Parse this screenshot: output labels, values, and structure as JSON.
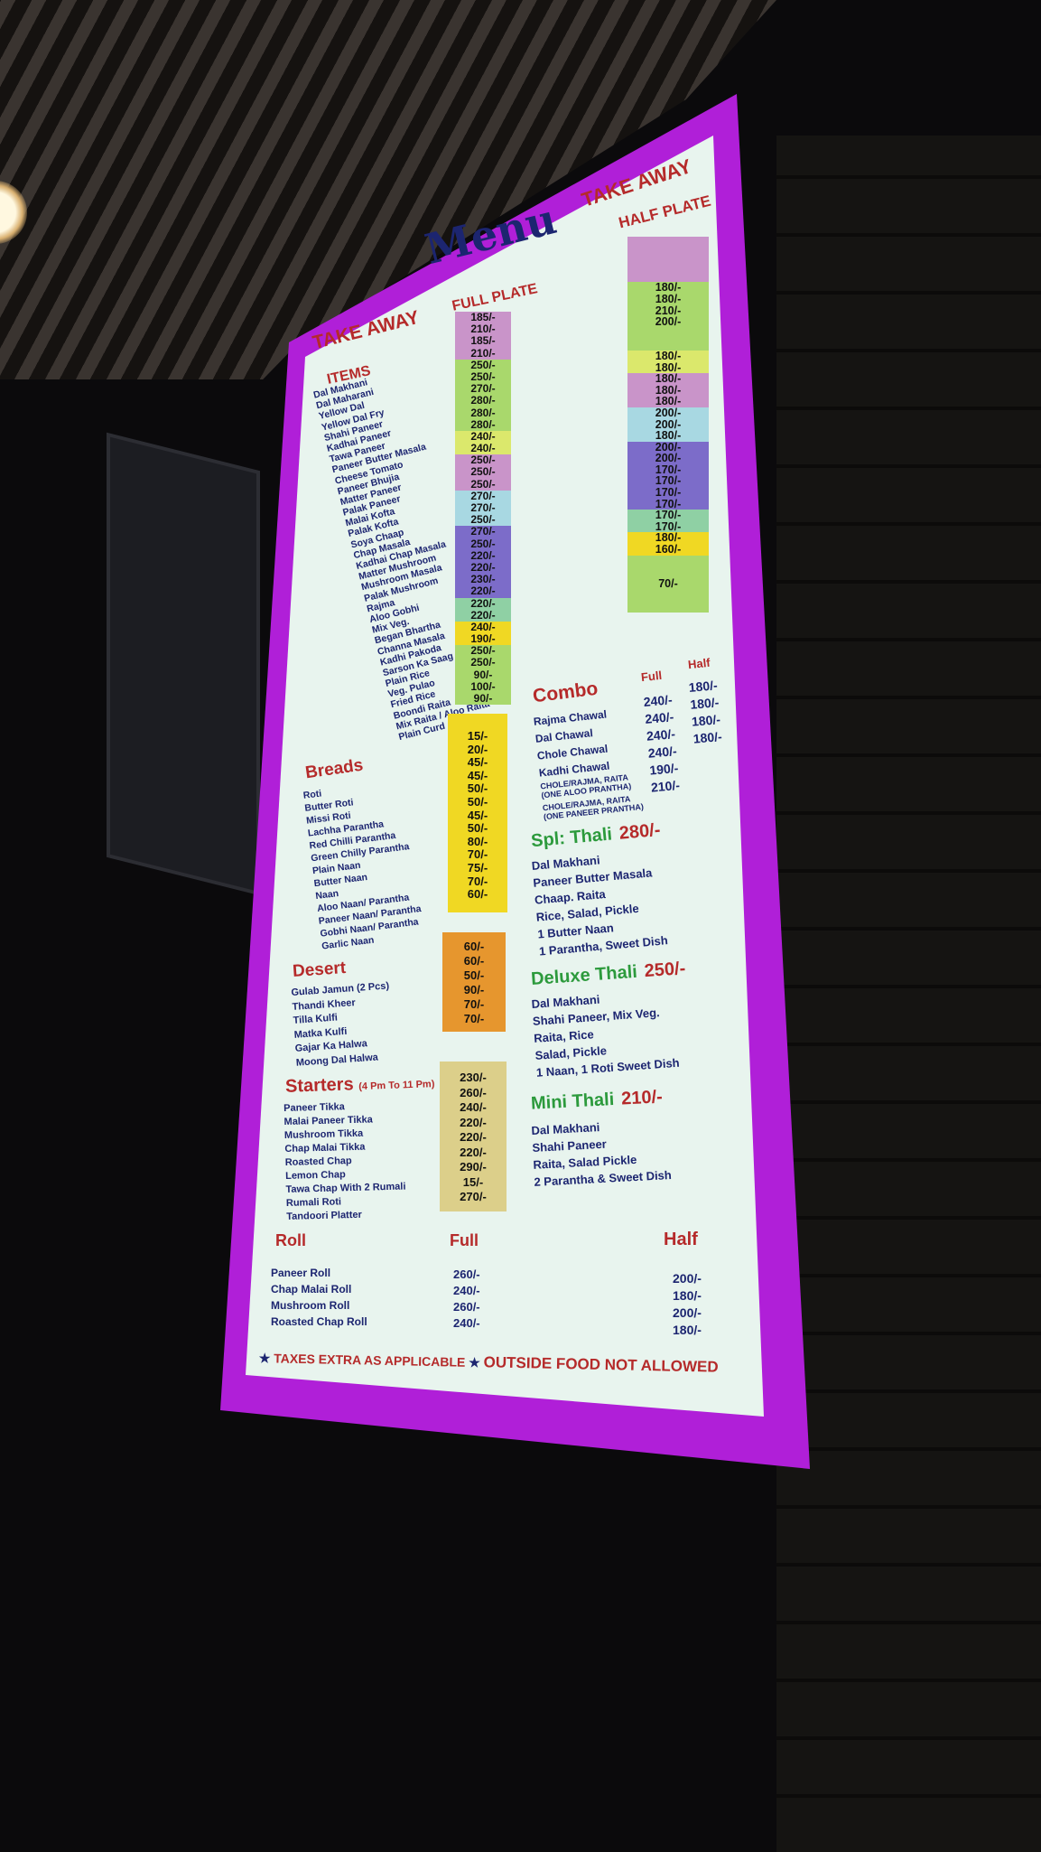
{
  "header": {
    "title": "Menu",
    "take_away_left": "TAKE AWAY",
    "full_plate": "FULL PLATE",
    "take_away_right": "TAKE AWAY",
    "half_plate": "HALF PLATE",
    "items_heading": "ITEMS"
  },
  "items": [
    "Dal Makhani",
    "Dal Maharani",
    "Yellow Dal",
    "Yellow Dal Fry",
    "Shahi Paneer",
    "Kadhai Paneer",
    "Tawa Paneer",
    "Paneer Butter Masala",
    "Cheese Tomato",
    "Paneer Bhujia",
    "Matter Paneer",
    "Palak Paneer",
    "Malai Kofta",
    "Palak Kofta",
    "Soya Chaap",
    "Chap Masala",
    "Kadhai Chap Masala",
    "Matter Mushroom",
    "Mushroom Masala",
    "Palak Mushroom",
    "Rajma",
    "Aloo Gobhi",
    "Mix Veg.",
    "Began Bhartha",
    "Channa Masala",
    "Kadhi Pakoda",
    "Sarson Ka Saag (Seasonal)",
    "Plain Rice",
    "Veg. Pulao",
    "Fried Rice",
    "Boondi Raita",
    "Mix Raita / Aloo Raita",
    "Plain Curd"
  ],
  "full_segments": [
    {
      "color": "#c994c9",
      "prices": [
        "185/-",
        "210/-",
        "185/-",
        "210/-"
      ]
    },
    {
      "color": "#a9d86c",
      "prices": [
        "250/-",
        "250/-",
        "270/-",
        "280/-",
        "280/-",
        "280/-"
      ]
    },
    {
      "color": "#dbe86c",
      "prices": [
        "240/-",
        "240/-"
      ]
    },
    {
      "color": "#c994c9",
      "prices": [
        "250/-",
        "250/-",
        "250/-"
      ]
    },
    {
      "color": "#a8d8e2",
      "prices": [
        "270/-",
        "270/-",
        "250/-"
      ]
    },
    {
      "color": "#7c6cc9",
      "prices": [
        "270/-",
        "250/-",
        "220/-",
        "220/-",
        "230/-",
        "220/-"
      ]
    },
    {
      "color": "#8fd0a4",
      "prices": [
        "220/-",
        "220/-"
      ]
    },
    {
      "color": "#f0d823",
      "prices": [
        "240/-",
        "190/-"
      ]
    },
    {
      "color": "#a9d86c",
      "prices": [
        "250/-",
        "250/-",
        "90/-",
        "100/-",
        "90/-"
      ]
    }
  ],
  "half_segments": [
    {
      "color": "#c994c9",
      "prices": [
        "",
        "",
        "",
        ""
      ]
    },
    {
      "color": "#a9d86c",
      "prices": [
        "180/-",
        "180/-",
        "210/-",
        "200/-",
        "",
        ""
      ]
    },
    {
      "color": "#dbe86c",
      "prices": [
        "180/-",
        "180/-"
      ]
    },
    {
      "color": "#c994c9",
      "prices": [
        "180/-",
        "180/-",
        "180/-"
      ]
    },
    {
      "color": "#a8d8e2",
      "prices": [
        "200/-",
        "200/-",
        "180/-"
      ]
    },
    {
      "color": "#7c6cc9",
      "prices": [
        "200/-",
        "200/-",
        "170/-",
        "170/-",
        "170/-",
        "170/-"
      ]
    },
    {
      "color": "#8fd0a4",
      "prices": [
        "170/-",
        "170/-"
      ]
    },
    {
      "color": "#f0d823",
      "prices": [
        "180/-",
        "160/-"
      ]
    },
    {
      "color": "#a9d86c",
      "prices": [
        "",
        "",
        "70/-",
        "",
        ""
      ]
    }
  ],
  "breads": {
    "heading": "Breads",
    "color": "#f0d823",
    "items": [
      "Roti",
      "Butter Roti",
      "Missi Roti",
      "Lachha Parantha",
      "Red Chilli Parantha",
      "Green Chilly Parantha",
      "Plain Naan",
      "Butter Naan",
      "Naan",
      "Aloo Naan/ Parantha",
      "Paneer Naan/ Parantha",
      "Gobhi Naan/ Parantha",
      "Garlic Naan"
    ],
    "prices": [
      "15/-",
      "20/-",
      "45/-",
      "45/-",
      "50/-",
      "50/-",
      "45/-",
      "50/-",
      "80/-",
      "70/-",
      "75/-",
      "70/-",
      "60/-"
    ]
  },
  "desert": {
    "heading": "Desert",
    "color": "#e6962e",
    "items": [
      "Gulab Jamun (2 Pcs)",
      "Thandi Kheer",
      "Tilla Kulfi",
      "Matka Kulfi",
      "Gajar Ka Halwa",
      "Moong Dal Halwa"
    ],
    "prices": [
      "60/-",
      "60/-",
      "50/-",
      "90/-",
      "70/-",
      "70/-"
    ]
  },
  "starters": {
    "heading": "Starters",
    "note": "(4 Pm To 11 Pm)",
    "color": "#dccf8a",
    "items": [
      "Paneer Tikka",
      "Malai Paneer Tikka",
      "Mushroom Tikka",
      "Chap Malai Tikka",
      "Roasted Chap",
      "Lemon Chap",
      "Tawa Chap With 2 Rumali",
      "Rumali Roti",
      "Tandoori Platter"
    ],
    "prices": [
      "230/-",
      "260/-",
      "240/-",
      "220/-",
      "220/-",
      "220/-",
      "290/-",
      "15/-",
      "270/-"
    ]
  },
  "combo": {
    "heading": "Combo",
    "full_label": "Full",
    "half_label": "Half",
    "items": [
      "Rajma Chawal",
      "Dal Chawal",
      "Chole Chawal",
      "Kadhi Chawal",
      "CHOLE/RAJMA, RAITA (ONE ALOO PRANTHA)",
      "CHOLE/RAJMA, RAITA (ONE PANEER PRANTHA)"
    ],
    "full": [
      "240/-",
      "240/-",
      "240/-",
      "240/-",
      "190/-",
      "210/-"
    ],
    "half": [
      "180/-",
      "180/-",
      "180/-",
      "180/-"
    ]
  },
  "thalis": [
    {
      "name": "Spl: Thali",
      "price": "280/-",
      "items": [
        "Dal Makhani",
        "Paneer Butter Masala",
        "Chaap. Raita",
        "Rice, Salad, Pickle",
        "1 Butter Naan",
        "1 Parantha, Sweet Dish"
      ]
    },
    {
      "name": "Deluxe Thali",
      "price": "250/-",
      "items": [
        "Dal Makhani",
        "Shahi Paneer, Mix Veg.",
        "Raita, Rice",
        "Salad, Pickle",
        "1 Naan, 1 Roti Sweet Dish"
      ]
    },
    {
      "name": "Mini Thali",
      "price": "210/-",
      "items": [
        "Dal Makhani",
        "Shahi Paneer",
        "Raita, Salad Pickle",
        "2 Parantha & Sweet Dish"
      ]
    }
  ],
  "roll": {
    "heading": "Roll",
    "full_label": "Full",
    "half_label": "Half",
    "items": [
      "Paneer Roll",
      "Chap Malai Roll",
      "Mushroom Roll",
      "Roasted Chap Roll"
    ],
    "full": [
      "260/-",
      "240/-",
      "260/-",
      "240/-"
    ],
    "half": [
      "200/-",
      "180/-",
      "200/-",
      "180/-"
    ]
  },
  "footer": {
    "taxes": "TAXES EXTRA AS APPLICABLE",
    "outside": "OUTSIDE FOOD NOT ALLOWED",
    "star": "★"
  }
}
